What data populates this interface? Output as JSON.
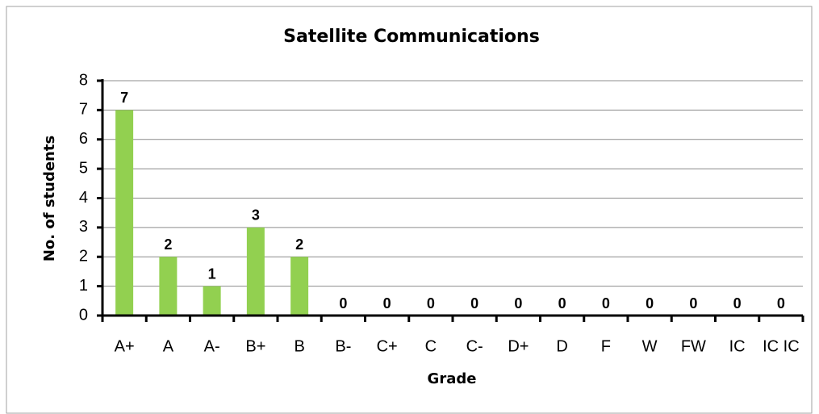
{
  "chart_data": {
    "type": "bar",
    "title": "Satellite Communications",
    "x_label": "Grade",
    "y_label": "No. of students",
    "categories": [
      "A+",
      "A",
      "A-",
      "B+",
      "B",
      "B-",
      "C+",
      "C",
      "C-",
      "D+",
      "D",
      "F",
      "W",
      "FW",
      "IC",
      "IC IC"
    ],
    "values": [
      7,
      2,
      1,
      3,
      2,
      0,
      0,
      0,
      0,
      0,
      0,
      0,
      0,
      0,
      0,
      0
    ],
    "color": "#92d050",
    "ylim": [
      0,
      8
    ],
    "yticks": [
      0,
      1,
      2,
      3,
      4,
      5,
      6,
      7,
      8
    ],
    "grid": true
  }
}
